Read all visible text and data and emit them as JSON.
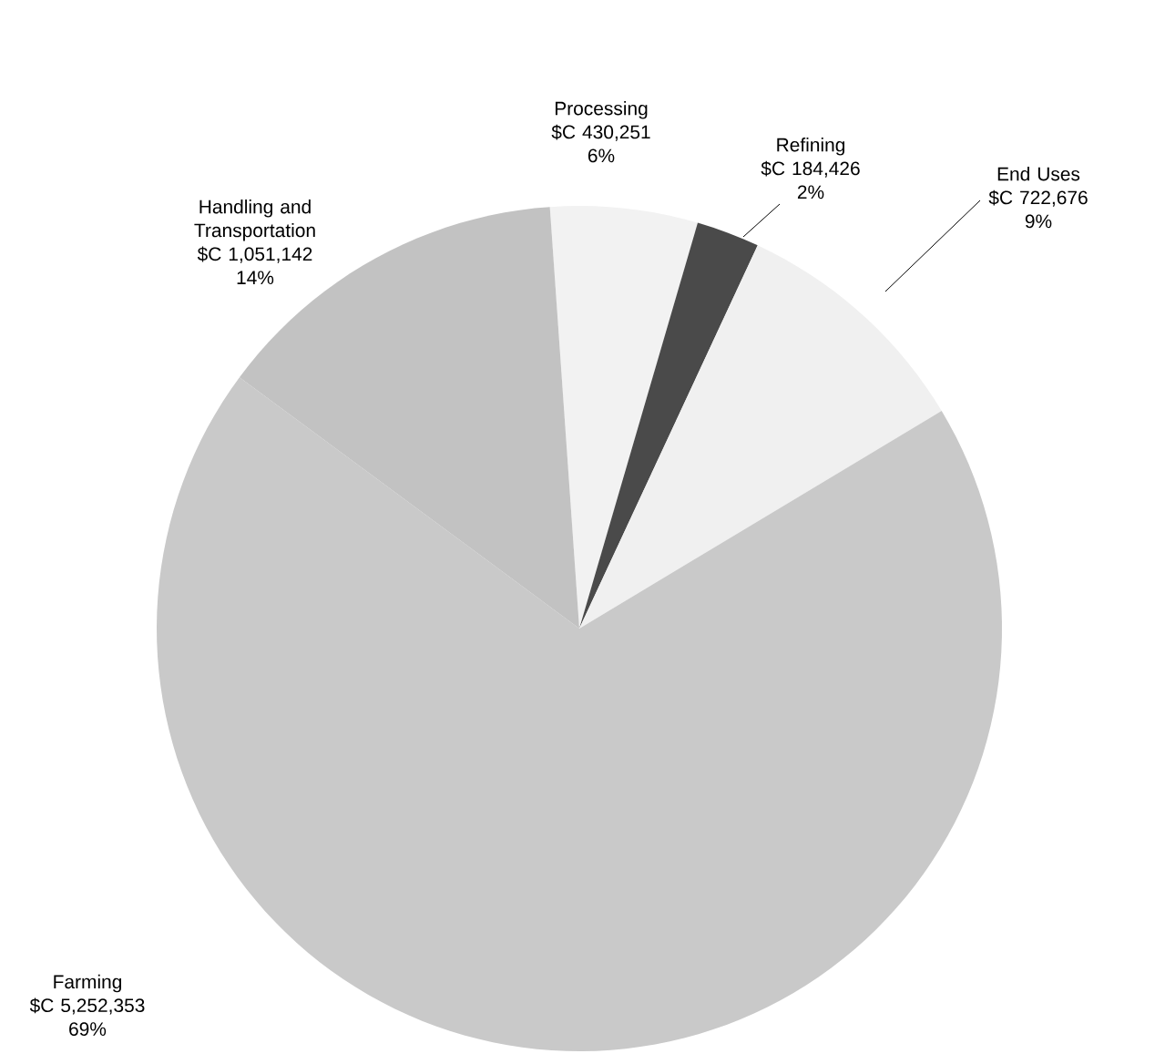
{
  "chart_data": {
    "type": "pie",
    "categories": [
      "Processing",
      "Refining",
      "End Uses",
      "Farming",
      "Handling and Transportation"
    ],
    "values": [
      430251,
      184426,
      722676,
      5252353,
      1051142
    ],
    "value_labels": [
      "$C 430,251",
      "$C 184,426",
      "$C 722,676",
      "$C 5,252,353",
      "$C 1,051,142"
    ],
    "annotations": [
      "6%",
      "2%",
      "9%",
      "69%",
      "14%"
    ],
    "colors": [
      "#f2f2f2",
      "#4a4a4a",
      "#f0f0f0",
      "#c9c9c9",
      "#c2c2c2"
    ]
  }
}
